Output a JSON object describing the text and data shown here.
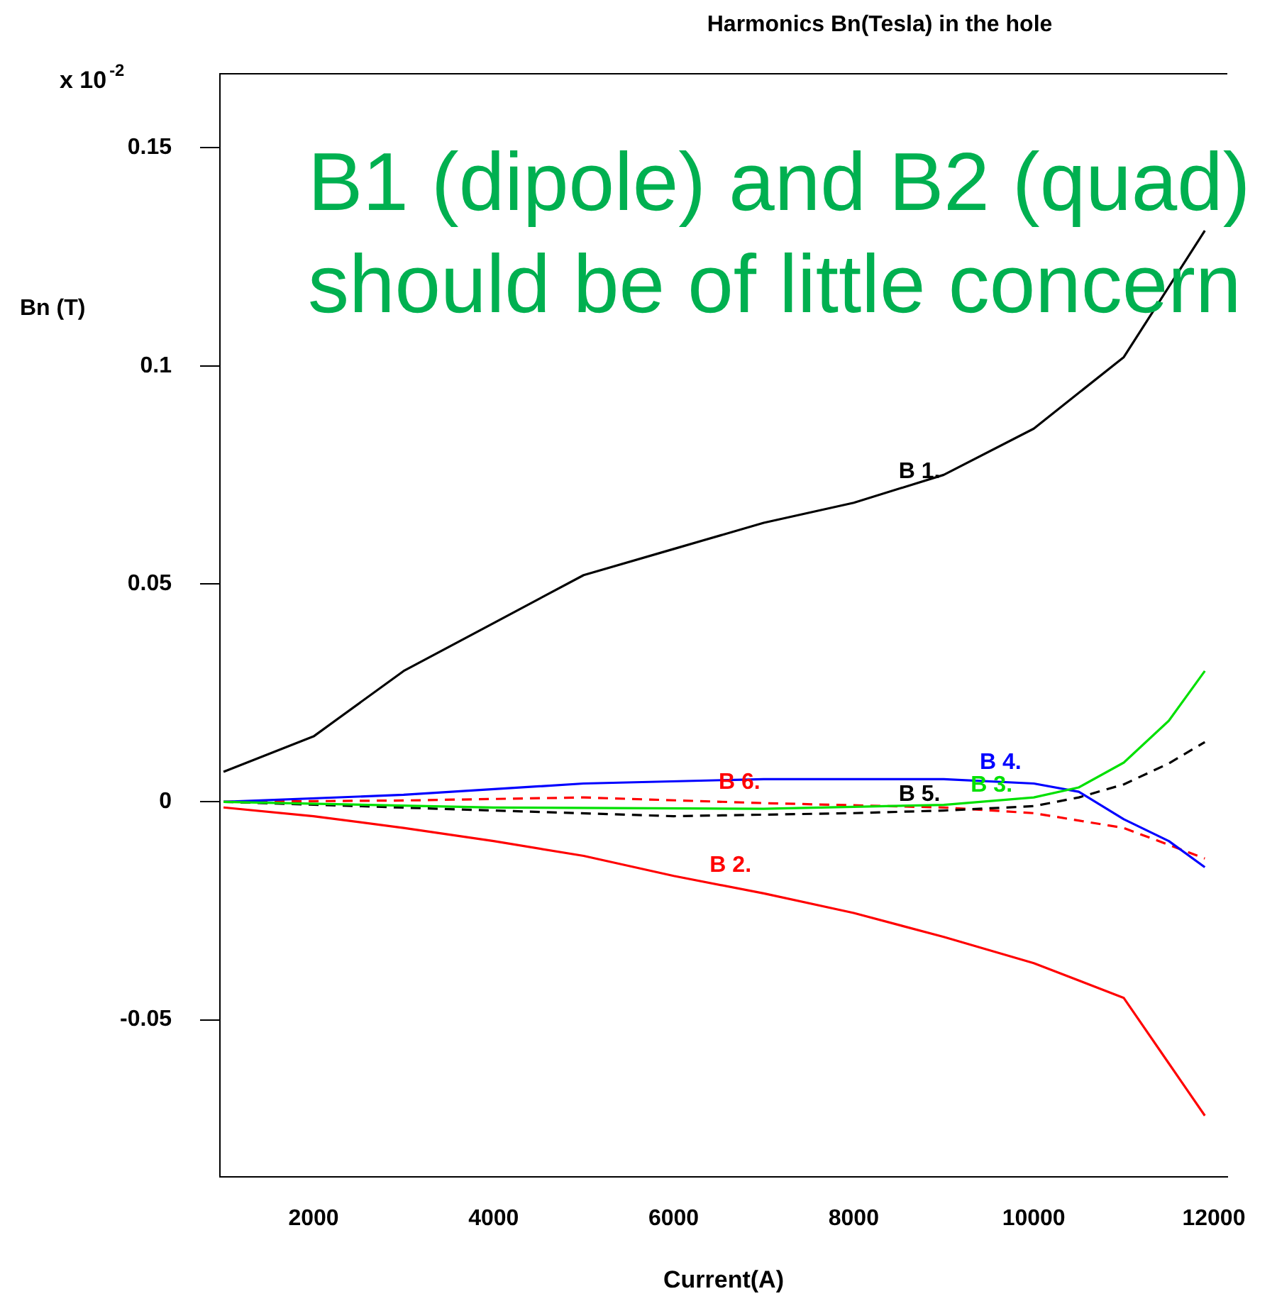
{
  "chart_data": {
    "type": "line",
    "title": "Harmonics Bn(Tesla) in the hole",
    "xlabel": "Current(A)",
    "ylabel": "Bn (T)",
    "xlim": [
      960,
      12150
    ],
    "xticks": [
      2000,
      4000,
      6000,
      8000,
      10000,
      12000
    ],
    "ylim": [
      -0.086,
      0.167
    ],
    "yticks": [
      -0.05,
      0,
      0.05,
      0.1,
      0.15
    ],
    "grid": false,
    "legend": false,
    "marker": "none",
    "series": [
      {
        "color": "#000000",
        "line_style": "solid",
        "x": [
          1000,
          2000,
          3000,
          4000,
          5000,
          6000,
          7000,
          8000,
          9000,
          10000,
          11000,
          11900
        ],
        "values": [
          0.0069,
          0.015,
          0.03,
          0.041,
          0.052,
          0.058,
          0.064,
          0.0686,
          0.075,
          0.0856,
          0.102,
          0.131
        ]
      },
      {
        "color": "#ff0000",
        "line_style": "solid",
        "x": [
          1000,
          2000,
          3000,
          4000,
          5000,
          6000,
          7000,
          8000,
          9000,
          10000,
          11000,
          11500,
          11900
        ],
        "values": [
          -0.0013,
          -0.0033,
          -0.006,
          -0.009,
          -0.0124,
          -0.017,
          -0.021,
          -0.0255,
          -0.031,
          -0.037,
          -0.045,
          -0.06,
          -0.072
        ]
      },
      {
        "color": "#00e000",
        "line_style": "solid",
        "x": [
          1000,
          4000,
          7000,
          9000,
          10000,
          10500,
          11000,
          11500,
          11900
        ],
        "values": [
          0,
          -0.0013,
          -0.0016,
          -0.0007,
          0.001,
          0.0033,
          0.009,
          0.0186,
          0.03
        ]
      },
      {
        "color": "#0000ff",
        "line_style": "solid",
        "x": [
          1000,
          3000,
          5000,
          7000,
          9000,
          10000,
          10500,
          11000,
          11500,
          11900
        ],
        "values": [
          0,
          0.0016,
          0.0042,
          0.0052,
          0.0052,
          0.0042,
          0.0023,
          -0.004,
          -0.009,
          -0.015
        ]
      },
      {
        "color": "#000000",
        "line_style": "dashed",
        "x": [
          1000,
          4000,
          6000,
          8000,
          9000,
          10000,
          10500,
          11000,
          11500,
          11900
        ],
        "values": [
          0,
          -0.002,
          -0.0033,
          -0.0026,
          -0.002,
          -0.001,
          0.001,
          0.004,
          0.0088,
          0.0137
        ]
      },
      {
        "color": "#ff0000",
        "line_style": "dashed",
        "x": [
          1000,
          3000,
          5000,
          7000,
          9000,
          10000,
          11000,
          11900
        ],
        "values": [
          0,
          0.0003,
          0.001,
          -0.0003,
          -0.0013,
          -0.0026,
          -0.006,
          -0.013
        ]
      }
    ],
    "annotations": [
      {
        "text": "B 1.",
        "x": 8500,
        "y": 0.0718
      },
      {
        "text": "B 2.",
        "x": 6400,
        "y": -0.0185
      },
      {
        "text": "B 3.",
        "x": 9300,
        "y": -0.0002
      },
      {
        "text": "B 4.",
        "x": 9400,
        "y": 0.005
      },
      {
        "text": "B 5.",
        "x": 8500,
        "y": -0.0023
      },
      {
        "text": "B 6.",
        "x": 6500,
        "y": 0.0005
      },
      "x 10$^{-2}$",
      "B1 (dipole) and B2 (quad) should be of little concern"
    ]
  }
}
